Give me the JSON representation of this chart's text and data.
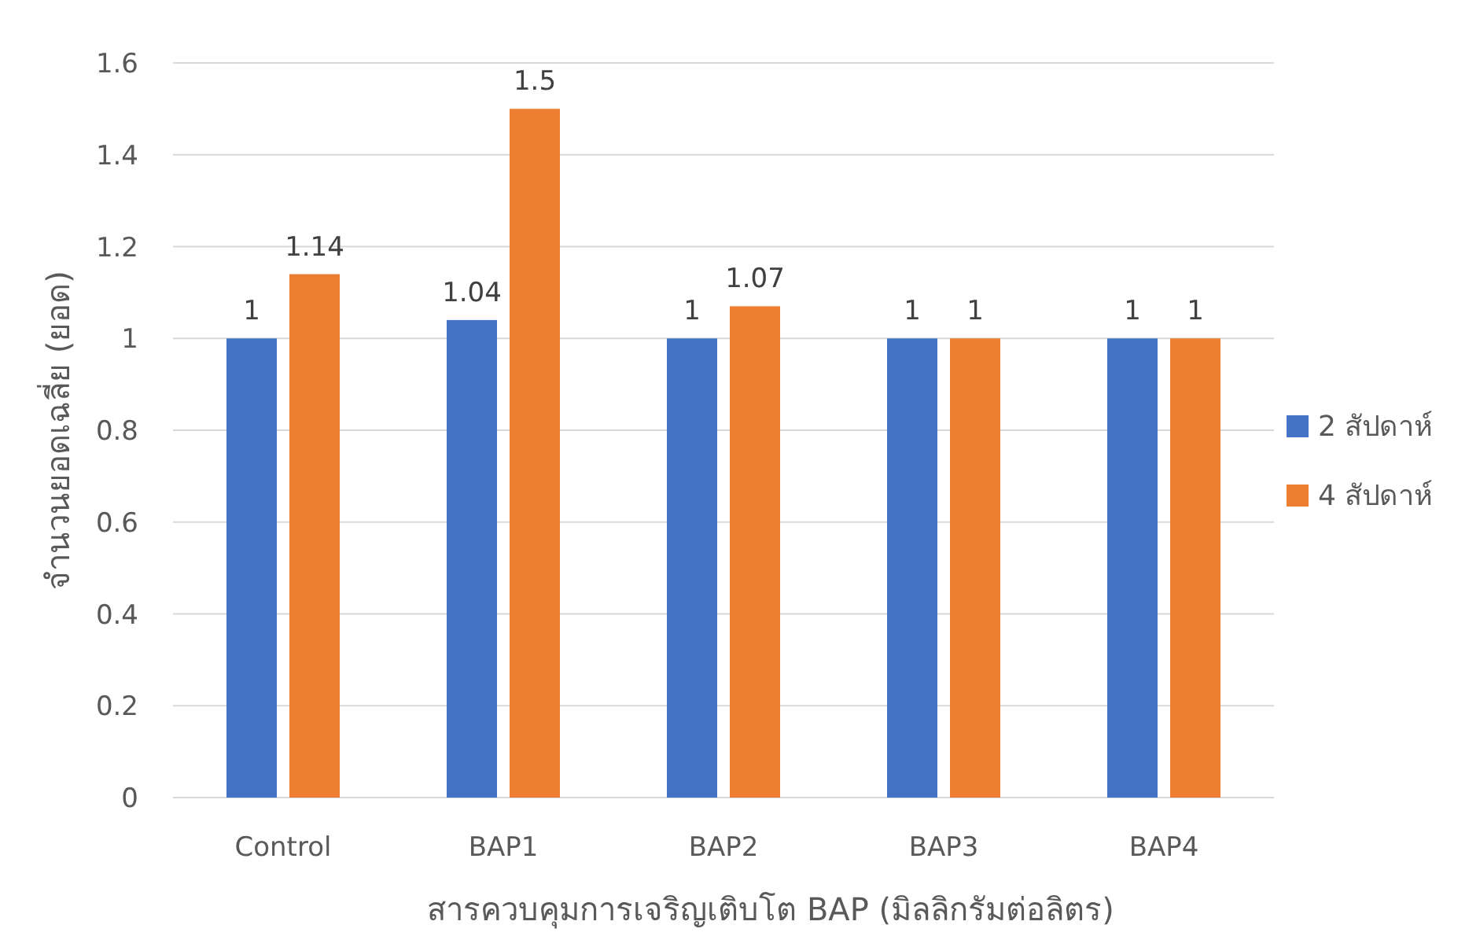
{
  "chart_data": {
    "type": "bar",
    "xlabel": "สารควบคุมการเจริญเติบโต BAP (มิลลิกรัมต่อลิตร)",
    "ylabel": "จำนวนยอดเฉลี่ย (ยอด)",
    "categories": [
      "Control",
      "BAP1",
      "BAP2",
      "BAP3",
      "BAP4"
    ],
    "series": [
      {
        "name": "2 สัปดาห์",
        "color": "#4472c4",
        "values": [
          1,
          1.04,
          1,
          1,
          1
        ]
      },
      {
        "name": "4 สัปดาห์",
        "color": "#ed7d31",
        "values": [
          1.14,
          1.5,
          1.07,
          1,
          1
        ]
      }
    ],
    "ylim": [
      0,
      1.6
    ],
    "yticks": [
      0,
      0.2,
      0.4,
      0.6,
      0.8,
      1,
      1.2,
      1.4,
      1.6
    ],
    "grid": "y",
    "legend": "right",
    "data_labels": true
  }
}
